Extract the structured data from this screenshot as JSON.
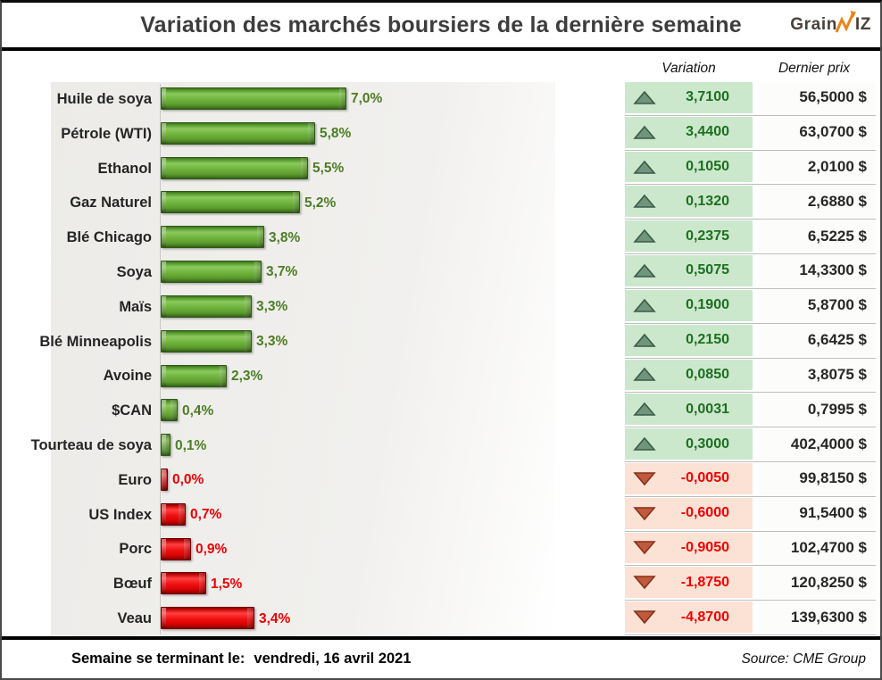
{
  "title": "Variation des marchés boursiers de la dernière semaine",
  "logo": {
    "part1": "Grain",
    "part2": "IZ",
    "arrow_color": "#e8861c",
    "text_color": "#49423c"
  },
  "columns": {
    "variation": "Variation",
    "last_price": "Dernier prix"
  },
  "rows": [
    {
      "label": "Huile de soya",
      "pct": 7.0,
      "pct_label": "7,0%",
      "variation": "3,7100",
      "price": "56,5000 $",
      "direction": "up"
    },
    {
      "label": "Pétrole (WTI)",
      "pct": 5.8,
      "pct_label": "5,8%",
      "variation": "3,4400",
      "price": "63,0700 $",
      "direction": "up"
    },
    {
      "label": "Ethanol",
      "pct": 5.5,
      "pct_label": "5,5%",
      "variation": "0,1050",
      "price": "2,0100 $",
      "direction": "up"
    },
    {
      "label": "Gaz Naturel",
      "pct": 5.2,
      "pct_label": "5,2%",
      "variation": "0,1320",
      "price": "2,6880 $",
      "direction": "up"
    },
    {
      "label": "Blé Chicago",
      "pct": 3.8,
      "pct_label": "3,8%",
      "variation": "0,2375",
      "price": "6,5225 $",
      "direction": "up"
    },
    {
      "label": "Soya",
      "pct": 3.7,
      "pct_label": "3,7%",
      "variation": "0,5075",
      "price": "14,3300 $",
      "direction": "up"
    },
    {
      "label": "Maïs",
      "pct": 3.3,
      "pct_label": "3,3%",
      "variation": "0,1900",
      "price": "5,8700 $",
      "direction": "up"
    },
    {
      "label": "Blé Minneapolis",
      "pct": 3.3,
      "pct_label": "3,3%",
      "variation": "0,2150",
      "price": "6,6425 $",
      "direction": "up"
    },
    {
      "label": "Avoine",
      "pct": 2.3,
      "pct_label": "2,3%",
      "variation": "0,0850",
      "price": "3,8075 $",
      "direction": "up"
    },
    {
      "label": "$CAN",
      "pct": 0.4,
      "pct_label": "0,4%",
      "variation": "0,0031",
      "price": "0,7995 $",
      "direction": "up"
    },
    {
      "label": "Tourteau de soya",
      "pct": 0.1,
      "pct_label": "0,1%",
      "variation": "0,3000",
      "price": "402,4000 $",
      "direction": "up"
    },
    {
      "label": "Euro",
      "pct": 0.0,
      "pct_label": "0,0%",
      "variation": "-0,0050",
      "price": "99,8150 $",
      "direction": "down"
    },
    {
      "label": "US Index",
      "pct": 0.7,
      "pct_label": "0,7%",
      "variation": "-0,6000",
      "price": "91,5400 $",
      "direction": "down"
    },
    {
      "label": "Porc",
      "pct": 0.9,
      "pct_label": "0,9%",
      "variation": "-0,9050",
      "price": "102,4700 $",
      "direction": "down"
    },
    {
      "label": "Bœuf",
      "pct": 1.5,
      "pct_label": "1,5%",
      "variation": "-1,8750",
      "price": "120,8250 $",
      "direction": "down"
    },
    {
      "label": "Veau",
      "pct": 3.4,
      "pct_label": "3,4%",
      "variation": "-4,8700",
      "price": "139,6300 $",
      "direction": "down"
    }
  ],
  "footer": {
    "week_label": "Semaine se terminant le:",
    "week_value": "vendredi, 16 avril 2021",
    "source": "Source: CME Group"
  },
  "colors": {
    "bar_positive": "#6fb23c",
    "bar_negative": "#f01010",
    "variation_bg_up": "#cbe8cd",
    "variation_bg_down": "#fbe2d4",
    "variation_text_up": "#1d701d",
    "variation_text_down": "#f20000",
    "up_triangle": "#6f957d",
    "down_triangle": "#c05a3c",
    "title_text": "#3d3d3d"
  },
  "chart_data": {
    "type": "bar",
    "orientation": "horizontal",
    "title": "Variation des marchés boursiers de la dernière semaine",
    "categories": [
      "Huile de soya",
      "Pétrole (WTI)",
      "Ethanol",
      "Gaz Naturel",
      "Blé Chicago",
      "Soya",
      "Maïs",
      "Blé Minneapolis",
      "Avoine",
      "$CAN",
      "Tourteau de soya",
      "Euro",
      "US Index",
      "Porc",
      "Bœuf",
      "Veau"
    ],
    "series": [
      {
        "name": "Variation hebdomadaire (%)",
        "values": [
          7.0,
          5.8,
          5.5,
          5.2,
          3.8,
          3.7,
          3.3,
          3.3,
          2.3,
          0.4,
          0.1,
          0.0,
          -0.7,
          -0.9,
          -1.5,
          -3.4
        ]
      },
      {
        "name": "Variation",
        "values": [
          3.71,
          3.44,
          0.105,
          0.132,
          0.2375,
          0.5075,
          0.19,
          0.215,
          0.085,
          0.0031,
          0.3,
          -0.005,
          -0.6,
          -0.905,
          -1.875,
          -4.87
        ]
      },
      {
        "name": "Dernier prix ($)",
        "values": [
          56.5,
          63.07,
          2.01,
          2.688,
          6.5225,
          14.33,
          5.87,
          6.6425,
          3.8075,
          0.7995,
          402.4,
          99.815,
          91.54,
          102.47,
          120.825,
          139.63
        ]
      }
    ],
    "xlim": [
      0,
      7.5
    ],
    "grid": false,
    "legend": false,
    "bar_colors": {
      "positive": "#6fb23c",
      "negative": "#f01010"
    }
  }
}
